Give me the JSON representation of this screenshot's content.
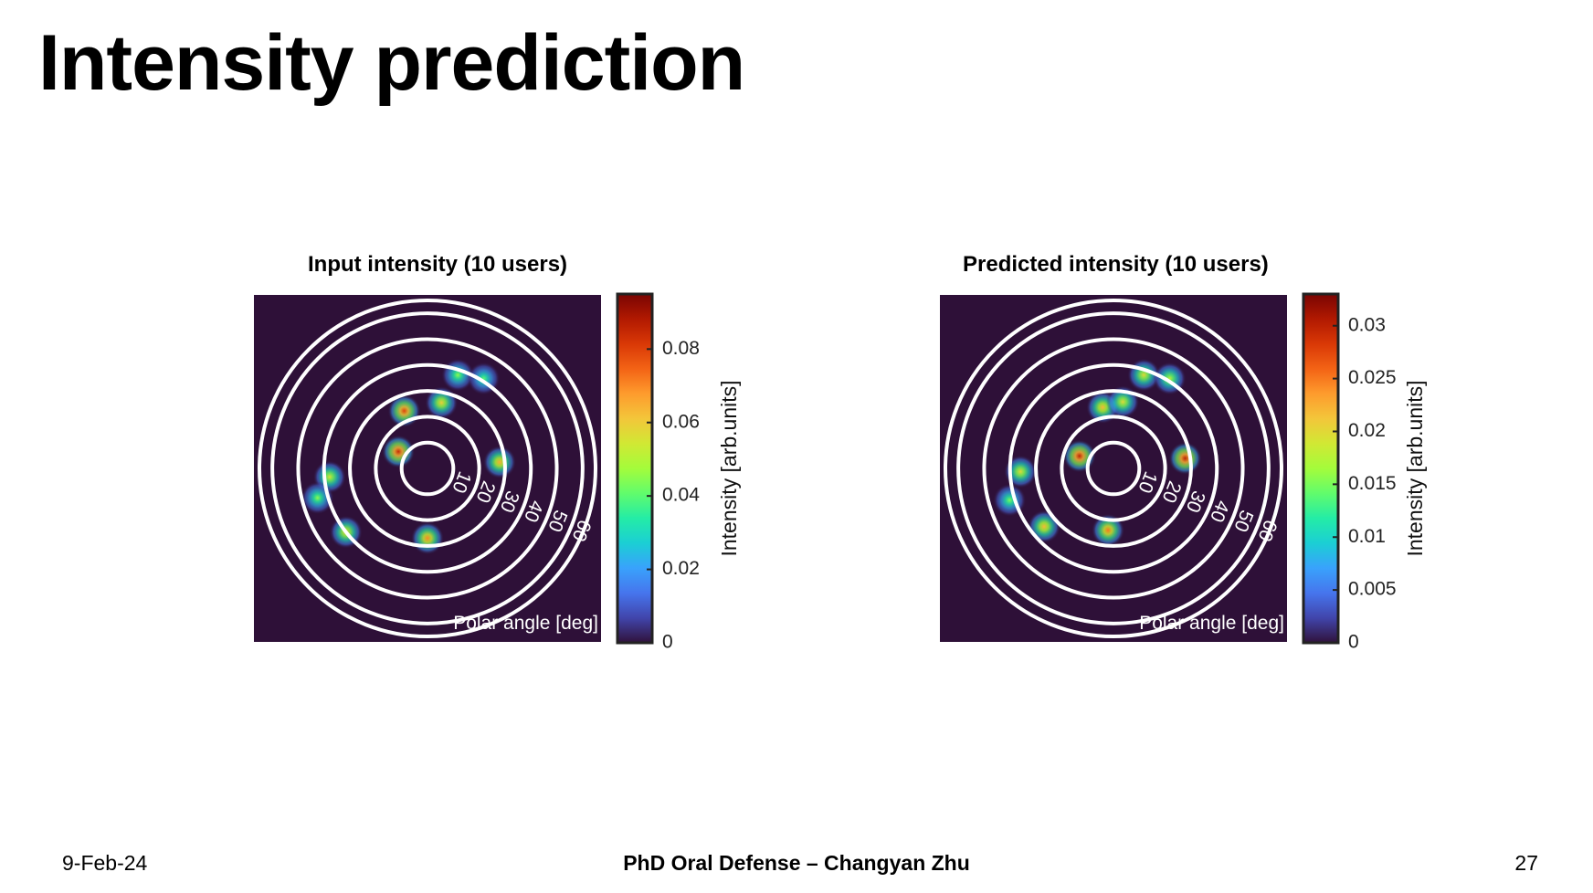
{
  "slide": {
    "title": "Intensity prediction",
    "footer_date": "9-Feb-24",
    "footer_center": "PhD Oral Defense – Changyan Zhu",
    "page_number": "27"
  },
  "colors": {
    "background": "#2e1038",
    "ring": "#ffffff",
    "colormap": [
      "#30123b",
      "#4145ab",
      "#4675ed",
      "#39a2fc",
      "#1bcfd4",
      "#24eca6",
      "#61fc6c",
      "#a4fc3b",
      "#d1e834",
      "#f3c63a",
      "#fe9b2d",
      "#f36315",
      "#d93806",
      "#b11901",
      "#7a0402"
    ]
  },
  "chart_data": [
    {
      "type": "heatmap",
      "projection": "polar",
      "title": "Input intensity (10 users)",
      "radial_label": "Polar angle [deg]",
      "radial_ticks": [
        "10",
        "20",
        "30",
        "40",
        "50",
        "60"
      ],
      "radial_tick_values": [
        10,
        20,
        30,
        40,
        50,
        60
      ],
      "radial_range": [
        0,
        65
      ],
      "colorbar": {
        "label": "Intensity [arb.units]",
        "range": [
          0,
          0.095
        ],
        "ticks": [
          0,
          0.02,
          0.04,
          0.06,
          0.08
        ],
        "tick_labels": [
          "0",
          "0.02",
          "0.04",
          "0.06",
          "0.08"
        ]
      },
      "spots": [
        {
          "polar_angle": 13,
          "azimuth": 150,
          "intensity": 0.085
        },
        {
          "polar_angle": 24,
          "azimuth": 112,
          "intensity": 0.08
        },
        {
          "polar_angle": 26,
          "azimuth": 78,
          "intensity": 0.06
        },
        {
          "polar_angle": 28,
          "azimuth": 5,
          "intensity": 0.065
        },
        {
          "polar_angle": 27,
          "azimuth": 270,
          "intensity": 0.07
        },
        {
          "polar_angle": 38,
          "azimuth": 72,
          "intensity": 0.045
        },
        {
          "polar_angle": 41,
          "azimuth": 58,
          "intensity": 0.04
        },
        {
          "polar_angle": 38,
          "azimuth": 185,
          "intensity": 0.055
        },
        {
          "polar_angle": 44,
          "azimuth": 195,
          "intensity": 0.045
        },
        {
          "polar_angle": 40,
          "azimuth": 218,
          "intensity": 0.06
        }
      ]
    },
    {
      "type": "heatmap",
      "projection": "polar",
      "title": "Predicted intensity (10 users)",
      "radial_label": "Polar angle [deg]",
      "radial_ticks": [
        "10",
        "20",
        "30",
        "40",
        "50",
        "60"
      ],
      "radial_tick_values": [
        10,
        20,
        30,
        40,
        50,
        60
      ],
      "radial_range": [
        0,
        65
      ],
      "colorbar": {
        "label": "Intensity [arb.units]",
        "range": [
          0,
          0.033
        ],
        "ticks": [
          0,
          0.005,
          0.01,
          0.015,
          0.02,
          0.025,
          0.03
        ],
        "tick_labels": [
          "0",
          "0.005",
          "0.01",
          "0.015",
          "0.02",
          "0.025",
          "0.03"
        ]
      },
      "spots": [
        {
          "polar_angle": 14,
          "azimuth": 160,
          "intensity": 0.03
        },
        {
          "polar_angle": 24,
          "azimuth": 100,
          "intensity": 0.022
        },
        {
          "polar_angle": 26,
          "azimuth": 82,
          "intensity": 0.02
        },
        {
          "polar_angle": 28,
          "azimuth": 8,
          "intensity": 0.03
        },
        {
          "polar_angle": 24,
          "azimuth": 265,
          "intensity": 0.025
        },
        {
          "polar_angle": 38,
          "azimuth": 72,
          "intensity": 0.02
        },
        {
          "polar_angle": 41,
          "azimuth": 58,
          "intensity": 0.018
        },
        {
          "polar_angle": 36,
          "azimuth": 182,
          "intensity": 0.02
        },
        {
          "polar_angle": 42,
          "azimuth": 197,
          "intensity": 0.015
        },
        {
          "polar_angle": 35,
          "azimuth": 220,
          "intensity": 0.022
        }
      ]
    }
  ]
}
